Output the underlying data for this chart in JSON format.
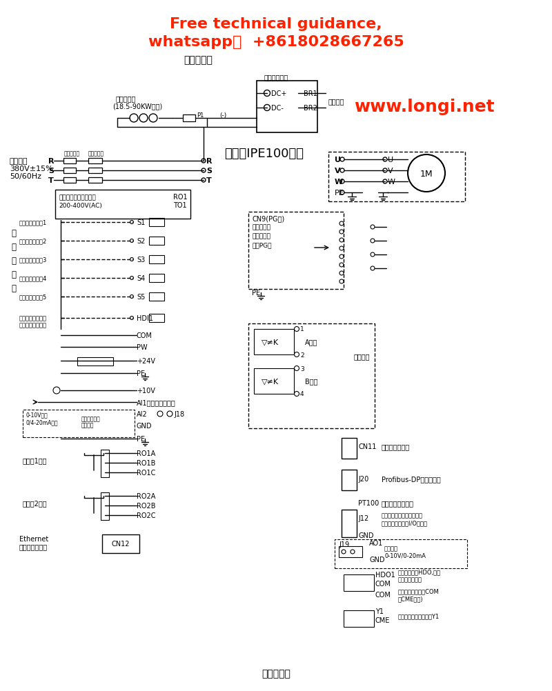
{
  "title_top": "Free technical guidance,\nwhatsapp：  +8618028667265",
  "title_top_color": "#ff2200",
  "subtitle_top": "标准接线图",
  "website": "www.longi.net",
  "website_color": "#ff2200",
  "bottom_label": "标准接线图",
  "bg_color": "#ffffff",
  "inverter_label": "变频器IPE100系列",
  "three_phase_lines": [
    "三相电源",
    "380V±15%",
    "50/60Hz"
  ],
  "rst": [
    "R",
    "S",
    "T"
  ],
  "external_ctrl": [
    "外部控制电源输出端子",
    "200-400V(AC)"
  ],
  "ro1_to1": [
    "RO1",
    "TO1"
  ],
  "multi_labels": [
    "多功能输入端了1",
    "多功能输入端了2",
    "多功能输入端了3",
    "多功能输入端了4",
    "多功能输入端了5"
  ],
  "s_terms": [
    "S1",
    "S2",
    "S3",
    "S4",
    "S5"
  ],
  "hdi_note1": "容速脉冲输入与开",
  "hdi_note2": "路集电极输入可选",
  "hdi1": "HDI1",
  "multi_group": [
    "多",
    "功",
    "能",
    "输",
    "入"
  ],
  "com_pw_24v_pe": [
    "COM",
    "PW",
    "+24V",
    "PE"
  ],
  "plus10v": "+10V",
  "ai1": "AI1多功能模拟输入",
  "ai2": "AI2",
  "j18": "J18",
  "gnd": "GND",
  "ai_input_labels": [
    "0-10V输入",
    "0/4-20mA输入"
  ],
  "ai_jumper": [
    "电压电流输入",
    "转换跳线"
  ],
  "relay1": "继电器1输出",
  "relay1_terms": [
    "RO1A",
    "RO1B",
    "RO1C"
  ],
  "relay2": "继电器2输出",
  "relay2_terms": [
    "RO2A",
    "RO2B",
    "RO2C"
  ],
  "ethernet": [
    "Ethernet",
    "以太网标准接口"
  ],
  "cn12": "CN12",
  "uvw_pe": [
    "U",
    "V",
    "W",
    "PE"
  ],
  "motor": "1M",
  "dc_reactor": [
    "直流电抗器",
    "(18.5-90KW内置)"
  ],
  "ext_brake": "外部制动单元",
  "dc_plus": "DC+",
  "dc_minus": "DC-",
  "br1": "BR1",
  "br2": "BR2",
  "brake_res": "制动电阵",
  "p1": "P1",
  "cn9": "CN9(PG卡)",
  "cn9_note": [
    "同步机和异",
    "步机采用不",
    "同的PG卡"
  ],
  "a_pulse": "A脉冲",
  "b_pulse": "B脉冲",
  "freq_out": "分频输出",
  "cn11": "CN11",
  "cn11_note": "外引键盘面接口",
  "j20": "J20",
  "j20_note": "Profibus-DP通讯卡接口",
  "pt100": "PT100",
  "pt100_note": "多功能扩展卡接口",
  "j12": "J12",
  "j12_note1": "电机温度检测端子（出）短",
  "j12_note2": "接）注：只存在于I/O扩展卡",
  "gnd_j12": "GND",
  "ao1": "AO1",
  "ao1_note1": "模拟输出",
  "ao1_note2": "0-10V/0-20mA",
  "j19": "J19",
  "gnd_ao": "GND",
  "hdo1": "HDO1",
  "com_hdo": "COM",
  "hdo_note1": "高速脉冲输出HDO,开路",
  "hdo_note2": "集电极输出可选",
  "com_label": "COM",
  "com_note1": "（出）标准设定是COM",
  "com_note2": "和CME短接)",
  "cme": "CME",
  "y1": "Y1",
  "cme_y1": "CME",
  "y1_note": "多功能开路集电极输出Y1",
  "fuse_label": "交流电抗器",
  "emc_label": "电磁接触器"
}
